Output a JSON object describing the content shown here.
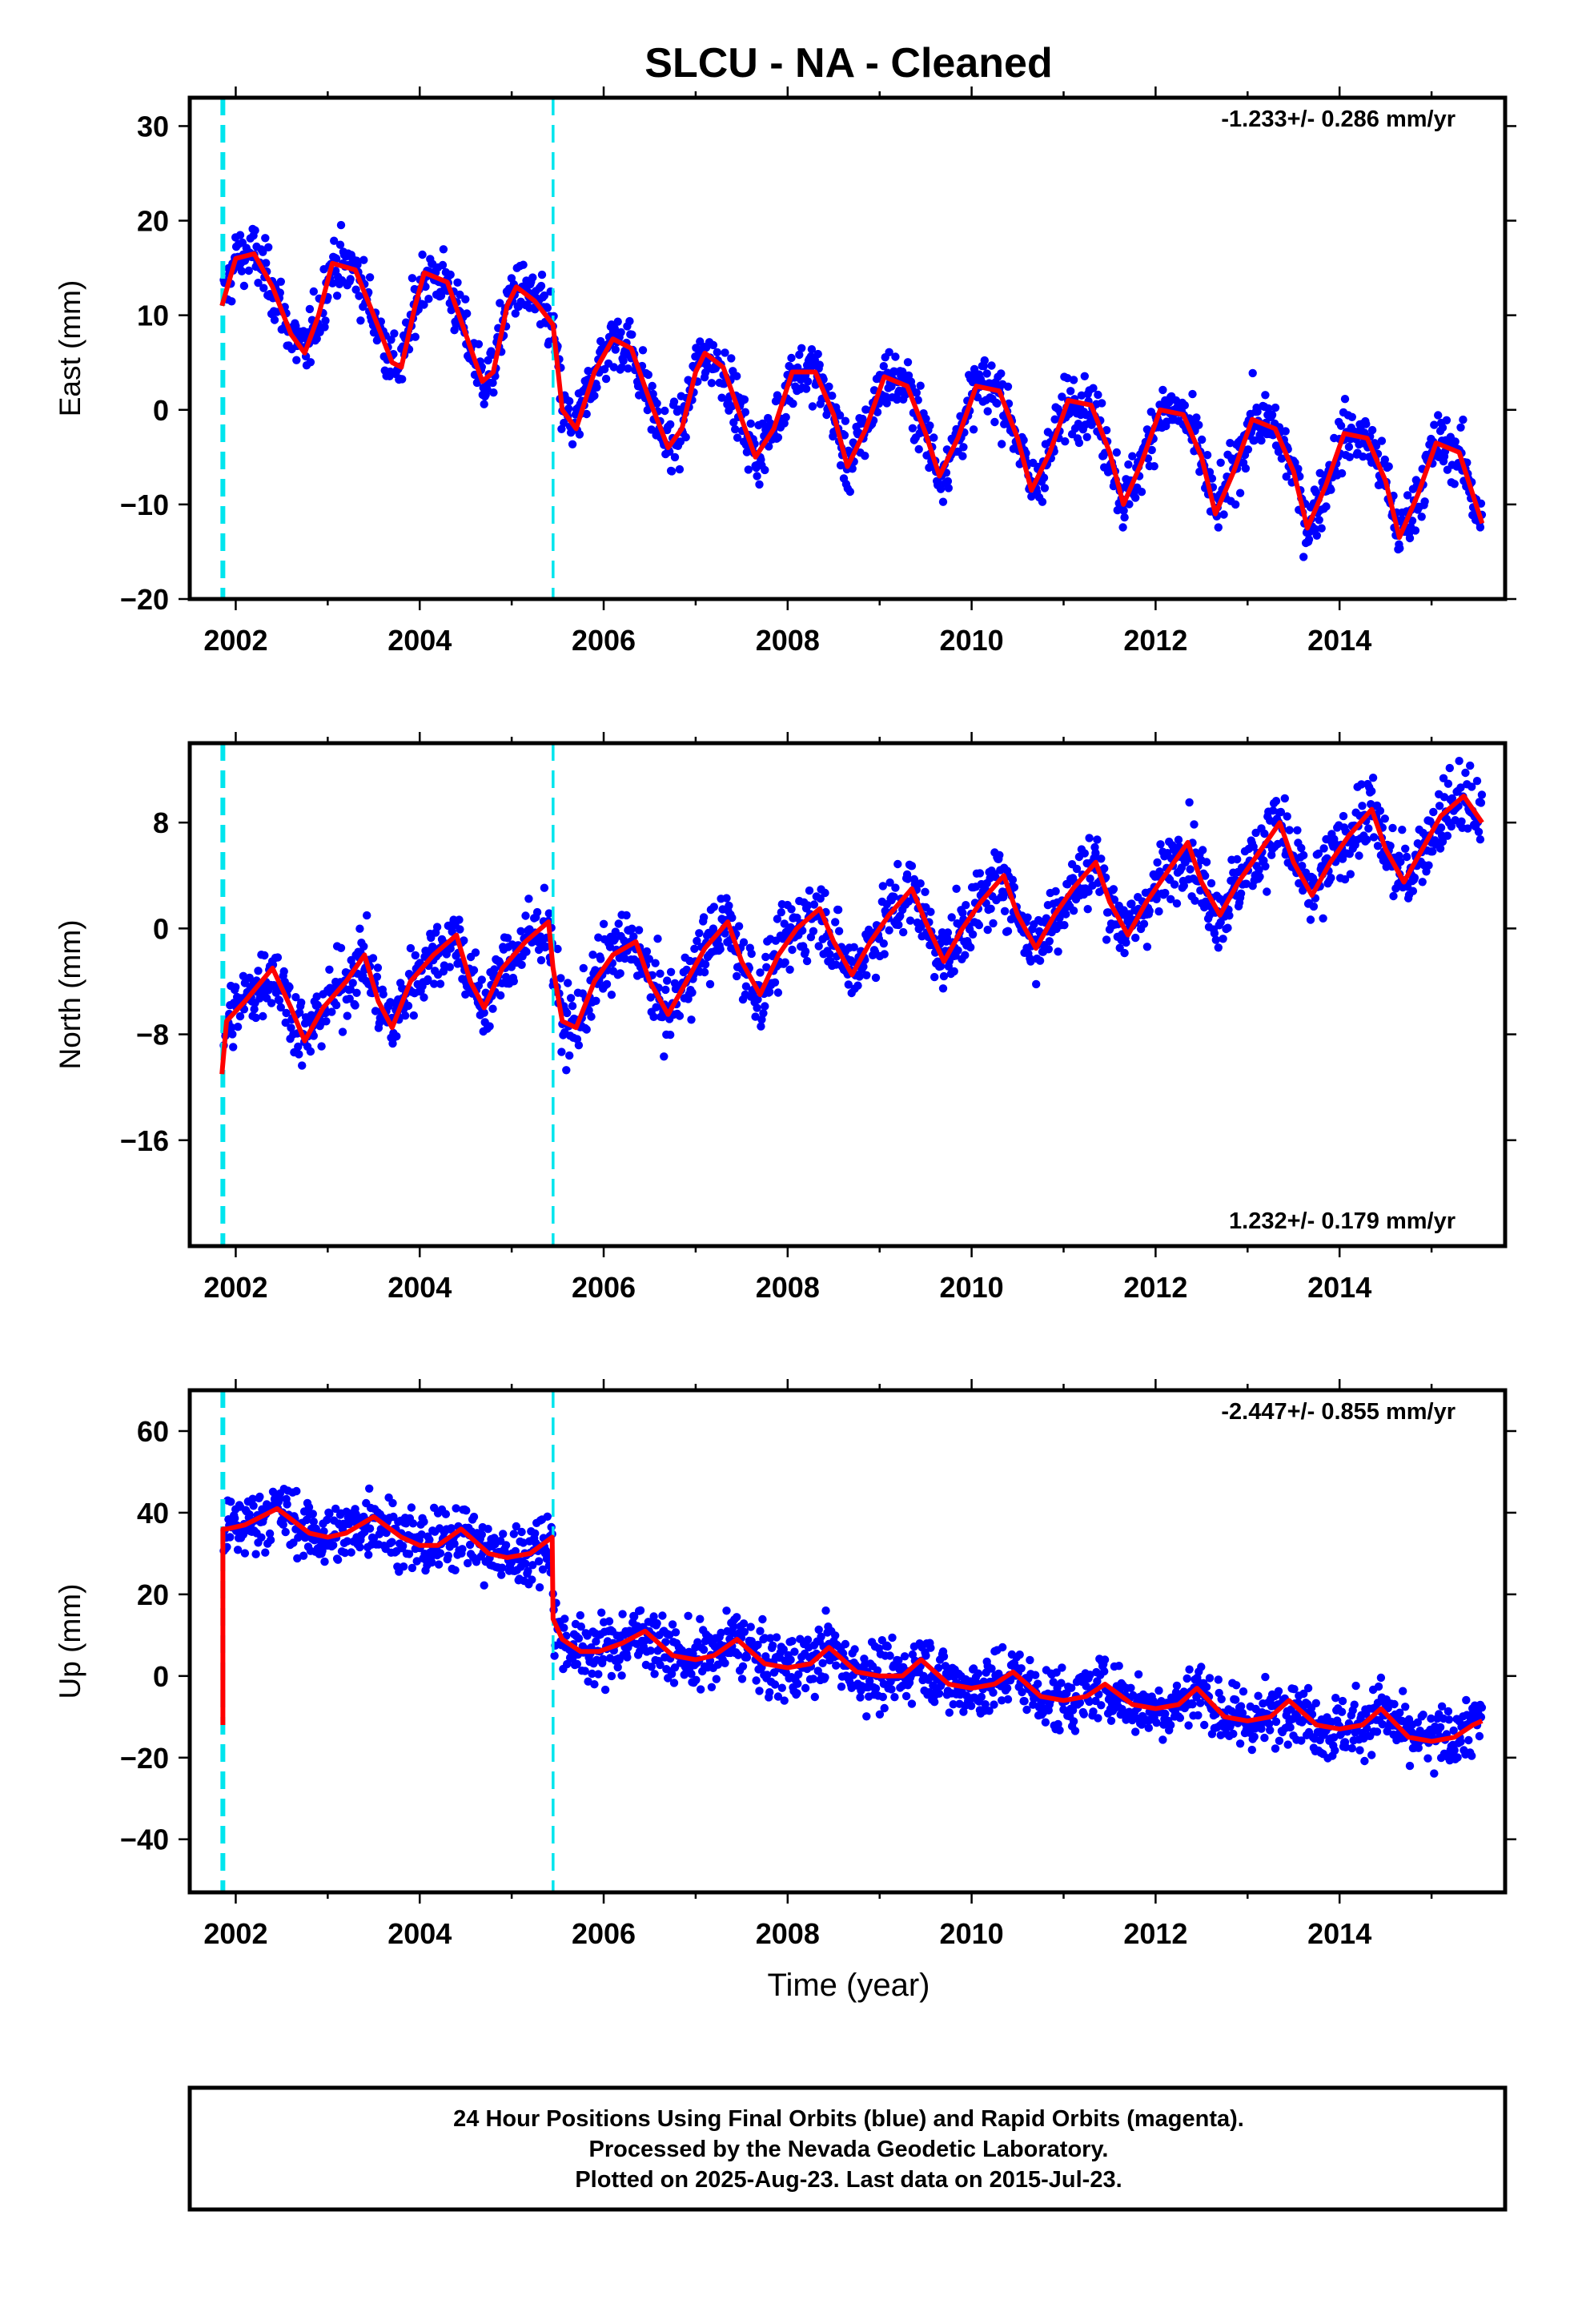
{
  "title": "SLCU  - NA - Cleaned",
  "colors": {
    "data": "#0000ff",
    "model": "#ff0000",
    "offset": "#00e5ee",
    "frame": "#000000"
  },
  "chart_data": [
    {
      "type": "scatter",
      "name": "east",
      "ylabel": "East (mm)",
      "rate_text": "-1.233+/- 0.286 mm/yr",
      "rate_position": "top-right",
      "xlim": [
        2001.5,
        2015.8
      ],
      "ylim": [
        -20,
        33
      ],
      "xticks": [
        2002,
        2004,
        2006,
        2008,
        2010,
        2012,
        2014
      ],
      "yticks": [
        -20,
        -10,
        0,
        10,
        20,
        30
      ],
      "ytick_labels": [
        "−20",
        "−10",
        "0",
        "10",
        "20",
        "30"
      ],
      "offsets": [
        2001.86,
        2005.45
      ],
      "series": [
        {
          "kind": "model_curve",
          "x": [
            2001.85,
            2002.0,
            2002.2,
            2002.4,
            2002.6,
            2002.75,
            2002.9,
            2003.05,
            2003.3,
            2003.5,
            2003.7,
            2003.8,
            2003.95,
            2004.05,
            2004.3,
            2004.5,
            2004.68,
            2004.8,
            2004.95,
            2005.05,
            2005.25,
            2005.45,
            2005.55,
            2005.7,
            2005.9,
            2006.1,
            2006.3,
            2006.5,
            2006.7,
            2006.85,
            2007.0,
            2007.1,
            2007.3,
            2007.5,
            2007.65,
            2007.85,
            2008.05,
            2008.3,
            2008.5,
            2008.65,
            2008.85,
            2009.05,
            2009.3,
            2009.5,
            2009.65,
            2009.85,
            2010.05,
            2010.3,
            2010.5,
            2010.65,
            2010.85,
            2011.05,
            2011.3,
            2011.5,
            2011.65,
            2011.85,
            2012.05,
            2012.3,
            2012.5,
            2012.65,
            2012.85,
            2013.05,
            2013.3,
            2013.5,
            2013.65,
            2013.85,
            2014.05,
            2014.3,
            2014.5,
            2014.65,
            2014.85,
            2015.05,
            2015.3,
            2015.55
          ],
          "y": [
            11,
            16,
            16.5,
            13,
            8,
            6,
            10,
            15.5,
            14.8,
            10,
            5,
            4.5,
            11,
            14.5,
            13.5,
            8,
            3,
            4,
            11,
            13,
            11.5,
            9,
            0,
            -2,
            4,
            7.5,
            6.5,
            1,
            -4,
            -2,
            4,
            6,
            4.5,
            -1,
            -5,
            -2,
            4,
            4,
            -0.5,
            -6,
            -2,
            3.5,
            2.5,
            -2.5,
            -7,
            -3,
            2.5,
            2,
            -3,
            -8.5,
            -4.5,
            1,
            0.5,
            -4.5,
            -10,
            -5.5,
            0,
            -0.5,
            -5,
            -11,
            -6.5,
            -1,
            -2,
            -6.5,
            -12.5,
            -8,
            -2.5,
            -3,
            -7.5,
            -13.5,
            -9,
            -3.5,
            -4.5,
            -12
          ]
        }
      ]
    },
    {
      "type": "scatter",
      "name": "north",
      "ylabel": "North (mm)",
      "rate_text": "1.232+/- 0.179 mm/yr",
      "rate_position": "bottom-right",
      "xlim": [
        2001.5,
        2015.8
      ],
      "ylim": [
        -24,
        14
      ],
      "xticks": [
        2002,
        2004,
        2006,
        2008,
        2010,
        2012,
        2014
      ],
      "yticks": [
        -16,
        -8,
        0,
        8
      ],
      "ytick_labels": [
        "−16",
        "−8",
        "0",
        "8"
      ],
      "offsets": [
        2001.86,
        2005.45
      ],
      "series": [
        {
          "kind": "model_curve",
          "x": [
            2001.85,
            2001.9,
            2002.1,
            2002.4,
            2002.6,
            2002.75,
            2002.95,
            2003.2,
            2003.4,
            2003.55,
            2003.7,
            2003.9,
            2004.15,
            2004.4,
            2004.55,
            2004.7,
            2004.9,
            2005.15,
            2005.4,
            2005.45,
            2005.55,
            2005.7,
            2005.9,
            2006.1,
            2006.35,
            2006.5,
            2006.7,
            2006.9,
            2007.1,
            2007.35,
            2007.5,
            2007.7,
            2007.9,
            2008.1,
            2008.35,
            2008.5,
            2008.7,
            2008.9,
            2009.1,
            2009.35,
            2009.5,
            2009.7,
            2009.9,
            2010.1,
            2010.35,
            2010.5,
            2010.7,
            2010.9,
            2011.1,
            2011.35,
            2011.5,
            2011.7,
            2011.9,
            2012.1,
            2012.35,
            2012.5,
            2012.7,
            2012.9,
            2013.1,
            2013.35,
            2013.5,
            2013.7,
            2013.9,
            2014.1,
            2014.35,
            2014.5,
            2014.7,
            2014.9,
            2015.1,
            2015.35,
            2015.55
          ],
          "y": [
            -11,
            -7,
            -5.5,
            -3,
            -6,
            -8.5,
            -6,
            -4,
            -2,
            -5.5,
            -7.5,
            -4,
            -2,
            -0.5,
            -4,
            -6,
            -3,
            -1,
            0.5,
            -3,
            -7,
            -7.5,
            -4,
            -2,
            -1,
            -4,
            -6.5,
            -4,
            -1.5,
            0.5,
            -2.5,
            -5,
            -2,
            0,
            1.5,
            -1,
            -3.5,
            -1,
            1,
            3,
            0.5,
            -2.5,
            0,
            2,
            4,
            1,
            -1.5,
            1,
            3,
            5,
            2,
            -0.5,
            2,
            4,
            6.5,
            3.5,
            1,
            3.5,
            5.5,
            8,
            5,
            2.5,
            5,
            7,
            9,
            6,
            3.5,
            6,
            8.5,
            10,
            8
          ]
        }
      ]
    },
    {
      "type": "scatter",
      "name": "up",
      "ylabel": "Up (mm)",
      "rate_text": "-2.447+/- 0.855 mm/yr",
      "rate_position": "top-right",
      "xlim": [
        2001.5,
        2015.8
      ],
      "ylim": [
        -53,
        70
      ],
      "xticks": [
        2002,
        2004,
        2006,
        2008,
        2010,
        2012,
        2014
      ],
      "yticks": [
        -40,
        -20,
        0,
        20,
        40,
        60
      ],
      "ytick_labels": [
        "−40",
        "−20",
        "0",
        "20",
        "40",
        "60"
      ],
      "offsets": [
        2001.86,
        2005.45
      ],
      "series": [
        {
          "kind": "model_curve",
          "x": [
            2001.86,
            2001.86,
            2001.87,
            2001.9,
            2002.1,
            2002.45,
            2002.8,
            2003.0,
            2003.2,
            2003.5,
            2003.8,
            2004.0,
            2004.2,
            2004.45,
            2004.75,
            2004.95,
            2005.2,
            2005.44,
            2005.45,
            2005.55,
            2005.75,
            2005.95,
            2006.2,
            2006.45,
            2006.75,
            2007.0,
            2007.2,
            2007.45,
            2007.75,
            2008.0,
            2008.25,
            2008.45,
            2008.75,
            2009.0,
            2009.25,
            2009.45,
            2009.75,
            2010.0,
            2010.25,
            2010.45,
            2010.75,
            2011.0,
            2011.25,
            2011.45,
            2011.75,
            2012.0,
            2012.25,
            2012.45,
            2012.75,
            2013.0,
            2013.25,
            2013.45,
            2013.75,
            2014.0,
            2014.25,
            2014.45,
            2014.75,
            2015.0,
            2015.25,
            2015.45,
            2015.55
          ],
          "y": [
            -12,
            36,
            36,
            36,
            37,
            41,
            35,
            34,
            35,
            39,
            34,
            32,
            32,
            36,
            30,
            29,
            30,
            34,
            14,
            9,
            6,
            6,
            8,
            11,
            5,
            4,
            5,
            9,
            3,
            2,
            3,
            7,
            1,
            0,
            0,
            4,
            -2,
            -3,
            -2,
            1,
            -5,
            -6,
            -5,
            -2,
            -7,
            -8,
            -7,
            -3,
            -10,
            -11,
            -10,
            -6,
            -12,
            -13,
            -12,
            -8,
            -15,
            -16,
            -15,
            -12,
            -11
          ]
        }
      ]
    }
  ],
  "xlabel": "Time (year)",
  "footer": {
    "line1": "24 Hour Positions Using Final Orbits (blue) and Rapid Orbits (magenta).",
    "line2": "Processed by the Nevada Geodetic Laboratory.",
    "line3": "Plotted on 2025-Aug-23. Last data on 2015-Jul-23."
  }
}
